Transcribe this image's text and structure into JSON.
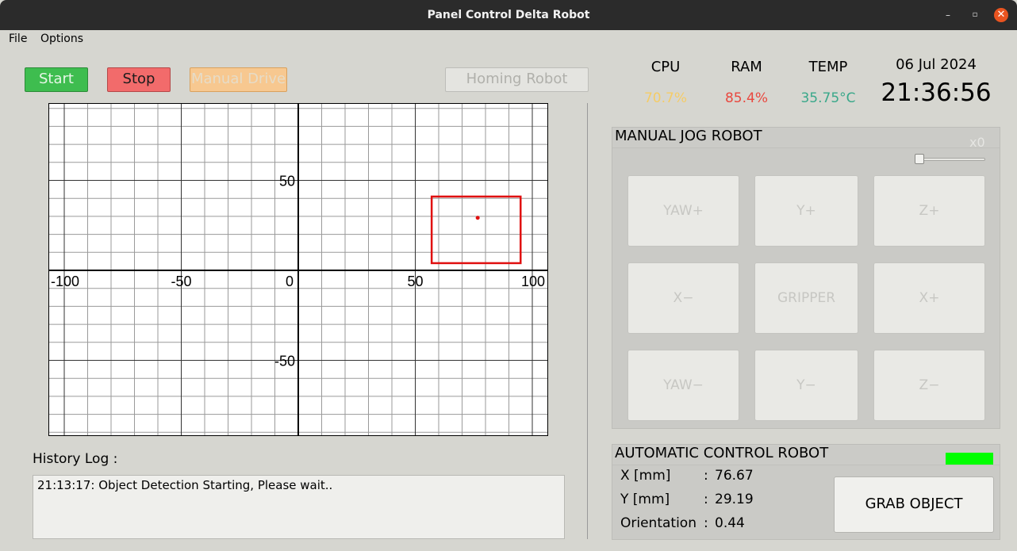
{
  "window": {
    "title": "Panel Control Delta Robot",
    "minimize": "–",
    "maximize": "▫",
    "close": "✕"
  },
  "menu": {
    "file": "File",
    "options": "Options"
  },
  "toolbar": {
    "start": "Start",
    "stop": "Stop",
    "manual_drive": "Manual Drive",
    "homing_robot": "Homing Robot"
  },
  "plot": {
    "x_ticks": [
      "-100",
      "-50",
      "0",
      "50",
      "100"
    ],
    "y_ticks": [
      "50",
      "-50"
    ],
    "x_range": [
      -100,
      100
    ],
    "y_range": [
      -70,
      70
    ],
    "object_box": {
      "x_min": 57,
      "x_max": 95,
      "y_min": 4,
      "y_max": 41
    },
    "object_center": {
      "x": 76.67,
      "y": 29.19
    },
    "box_color": "#e01010"
  },
  "history": {
    "label": "History Log :",
    "entries": [
      "21:13:17: Object Detection Starting, Please wait.."
    ]
  },
  "stats": {
    "cpu_label": "CPU",
    "cpu_value": "70.7%",
    "cpu_color": "#f5cc66",
    "ram_label": "RAM",
    "ram_value": "85.4%",
    "ram_color": "#e9483f",
    "temp_label": "TEMP",
    "temp_value": "35.75°C",
    "temp_color": "#3aa88a",
    "date": "06 Jul 2024",
    "time": "21:36:56"
  },
  "manual_jog": {
    "title": "MANUAL JOG ROBOT",
    "speed_label": "x0",
    "speed_level": 0,
    "buttons": [
      "YAW+",
      "Y+",
      "Z+",
      "X−",
      "GRIPPER",
      "X+",
      "YAW−",
      "Y−",
      "Z−"
    ]
  },
  "auto_control": {
    "title": "AUTOMATIC CONTROL ROBOT",
    "indicator_color": "#00ff00",
    "x_label": "X [mm]",
    "x_value": "76.67",
    "y_label": "Y [mm]",
    "y_value": "29.19",
    "orientation_label": "Orientation",
    "orientation_value": "0.44",
    "colon": ":",
    "grab_button": "GRAB OBJECT"
  }
}
